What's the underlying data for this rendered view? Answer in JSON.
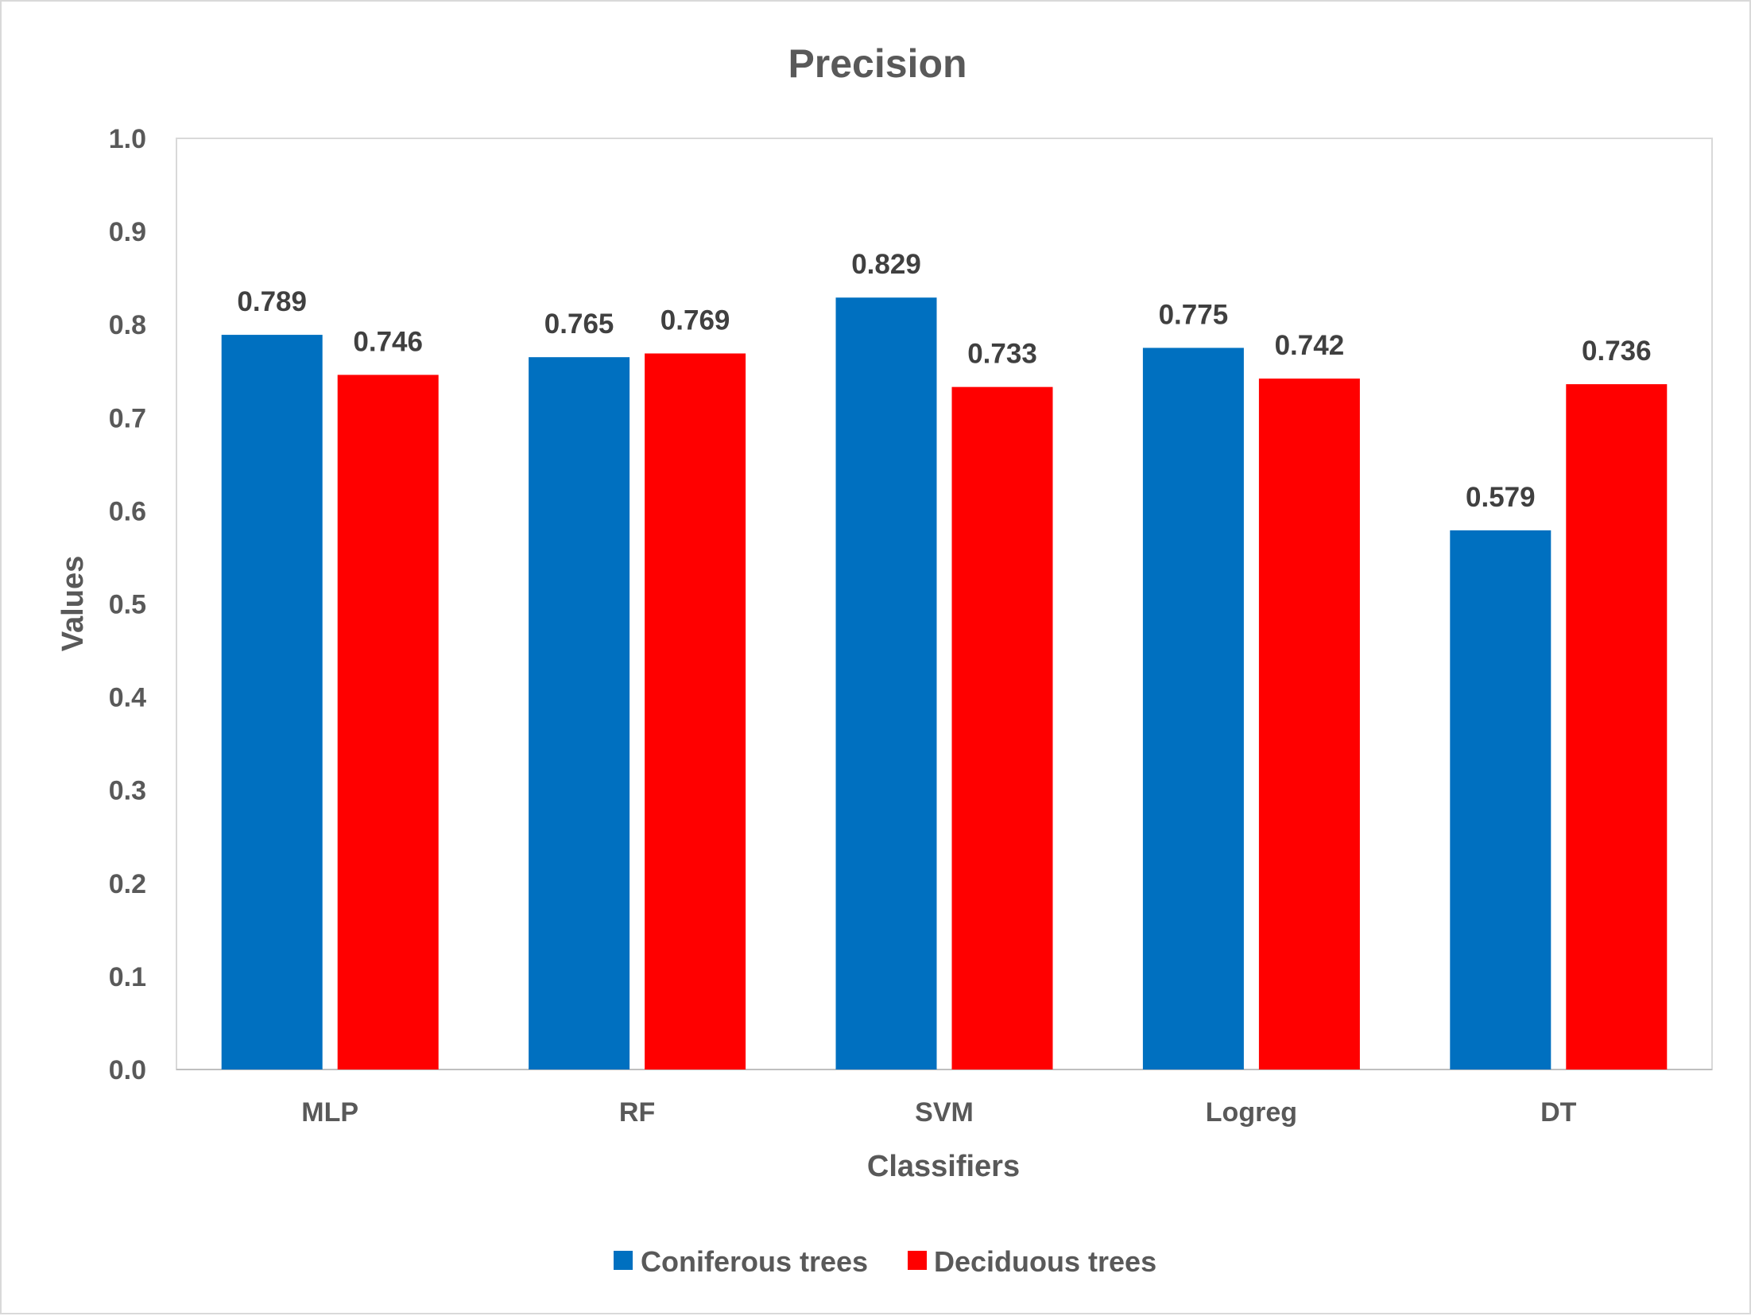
{
  "chart_data": {
    "type": "bar",
    "title": "Precision",
    "xlabel": "Classifiers",
    "ylabel": "Values",
    "categories": [
      "MLP",
      "RF",
      "SVM",
      "Logreg",
      "DT"
    ],
    "series": [
      {
        "name": "Coniferous trees",
        "color": "#0070c0",
        "values": [
          0.789,
          0.765,
          0.829,
          0.775,
          0.579
        ],
        "labels": [
          "0.789",
          "0.765",
          "0.829",
          "0.775",
          "0.579"
        ]
      },
      {
        "name": "Deciduous trees",
        "color": "#ff0000",
        "values": [
          0.746,
          0.769,
          0.733,
          0.742,
          0.736
        ],
        "labels": [
          "0.746",
          "0.769",
          "0.733",
          "0.742",
          "0.736"
        ]
      }
    ],
    "ylim": [
      0,
      1.0
    ],
    "yticks": [
      0,
      0.1,
      0.2,
      0.3,
      0.4,
      0.5,
      0.6,
      0.7,
      0.8,
      0.9,
      1.0
    ],
    "ytick_labels": [
      "0.0",
      "0.1",
      "0.2",
      "0.3",
      "0.4",
      "0.5",
      "0.6",
      "0.7",
      "0.8",
      "0.9",
      "1.0"
    ],
    "grid": false,
    "legend_position": "bottom"
  }
}
